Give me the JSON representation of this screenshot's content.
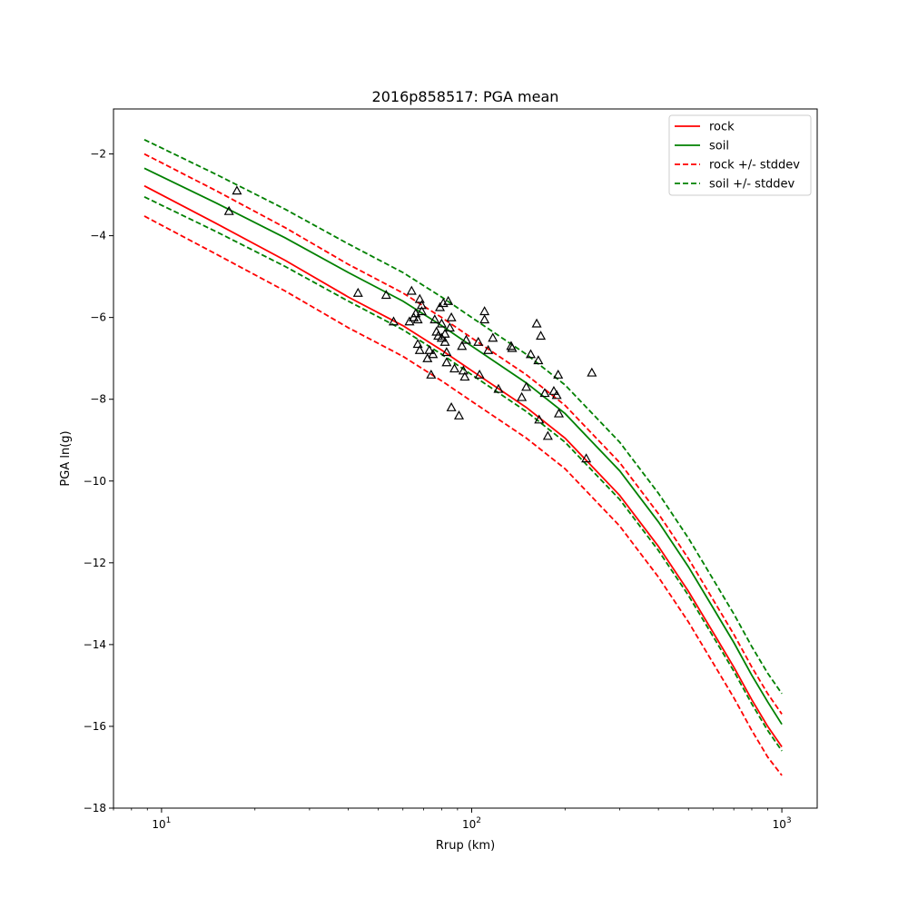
{
  "chart_data": {
    "type": "line",
    "title": "2016p858517: PGA mean",
    "xlabel": "Rrup (km)",
    "ylabel": "PGA ln(g)",
    "xscale": "log",
    "xlim": [
      7,
      1300
    ],
    "ylim": [
      -18,
      -0.9
    ],
    "x_ticks": [
      10,
      100,
      1000
    ],
    "x_tick_labels": [
      {
        "base": "10",
        "exp": "1"
      },
      {
        "base": "10",
        "exp": "2"
      },
      {
        "base": "10",
        "exp": "3"
      }
    ],
    "y_ticks": [
      -18,
      -16,
      -14,
      -12,
      -10,
      -8,
      -6,
      -4,
      -2
    ],
    "y_tick_labels": [
      "−18",
      "−16",
      "−14",
      "−12",
      "−10",
      "−8",
      "−6",
      "−4",
      "−2"
    ],
    "grid": false,
    "legend_position": "top-right",
    "series": [
      {
        "name": "rock",
        "color": "#ff0000",
        "style": "solid",
        "x": [
          8.8,
          15,
          25,
          40,
          60,
          80,
          100,
          150,
          200,
          300,
          400,
          500,
          600,
          700,
          800,
          900,
          1000
        ],
        "y": [
          -2.78,
          -3.7,
          -4.6,
          -5.5,
          -6.2,
          -6.8,
          -7.3,
          -8.2,
          -8.95,
          -10.35,
          -11.6,
          -12.7,
          -13.7,
          -14.55,
          -15.35,
          -16.0,
          -16.5
        ]
      },
      {
        "name": "soil",
        "color": "#008000",
        "style": "solid",
        "x": [
          8.8,
          15,
          25,
          40,
          60,
          80,
          100,
          150,
          200,
          300,
          400,
          500,
          600,
          700,
          800,
          900,
          1000
        ],
        "y": [
          -2.35,
          -3.2,
          -4.05,
          -4.9,
          -5.6,
          -6.2,
          -6.7,
          -7.6,
          -8.35,
          -9.75,
          -11.0,
          -12.1,
          -13.1,
          -13.95,
          -14.75,
          -15.4,
          -15.95
        ]
      },
      {
        "name": "rock +/- stddev",
        "color": "#ff0000",
        "style": "dashed",
        "x": [
          8.8,
          15,
          25,
          40,
          60,
          80,
          100,
          150,
          200,
          300,
          400,
          500,
          600,
          700,
          800,
          900,
          1000
        ],
        "y": [
          -2.0,
          -2.9,
          -3.8,
          -4.7,
          -5.4,
          -6.0,
          -6.5,
          -7.4,
          -8.15,
          -9.55,
          -10.8,
          -11.9,
          -12.9,
          -13.75,
          -14.55,
          -15.2,
          -15.7
        ]
      },
      {
        "name": "rock +/- stddev (lower)",
        "color": "#ff0000",
        "style": "dashed",
        "x": [
          8.8,
          15,
          25,
          40,
          60,
          80,
          100,
          150,
          200,
          300,
          400,
          500,
          600,
          700,
          800,
          900,
          1000
        ],
        "y": [
          -3.52,
          -4.45,
          -5.35,
          -6.25,
          -6.95,
          -7.55,
          -8.05,
          -8.95,
          -9.7,
          -11.1,
          -12.35,
          -13.45,
          -14.45,
          -15.3,
          -16.1,
          -16.75,
          -17.2
        ]
      },
      {
        "name": "soil +/- stddev",
        "color": "#008000",
        "style": "dashed",
        "x": [
          8.8,
          15,
          25,
          40,
          60,
          80,
          100,
          150,
          200,
          300,
          400,
          500,
          600,
          700,
          800,
          900,
          1000
        ],
        "y": [
          -1.65,
          -2.5,
          -3.35,
          -4.2,
          -4.9,
          -5.5,
          -6.0,
          -6.9,
          -7.65,
          -9.05,
          -10.3,
          -11.4,
          -12.4,
          -13.25,
          -14.05,
          -14.7,
          -15.2
        ]
      },
      {
        "name": "soil +/- stddev (lower)",
        "color": "#008000",
        "style": "dashed",
        "x": [
          8.8,
          15,
          25,
          40,
          60,
          80,
          100,
          150,
          200,
          300,
          400,
          500,
          600,
          700,
          800,
          900,
          1000
        ],
        "y": [
          -3.05,
          -3.9,
          -4.75,
          -5.6,
          -6.3,
          -6.9,
          -7.4,
          -8.3,
          -9.05,
          -10.45,
          -11.7,
          -12.8,
          -13.8,
          -14.65,
          -15.45,
          -16.1,
          -16.6
        ]
      }
    ],
    "observations": {
      "marker": "triangle",
      "color": "#000000",
      "points": [
        [
          16.5,
          -3.4
        ],
        [
          17.5,
          -2.9
        ],
        [
          43,
          -5.4
        ],
        [
          53,
          -5.45
        ],
        [
          56,
          -6.1
        ],
        [
          63,
          -6.1
        ],
        [
          64,
          -5.35
        ],
        [
          65,
          -6.0
        ],
        [
          66,
          -5.9
        ],
        [
          67,
          -6.05
        ],
        [
          67,
          -6.65
        ],
        [
          68,
          -6.8
        ],
        [
          68,
          -5.55
        ],
        [
          69,
          -5.7
        ],
        [
          69,
          -5.85
        ],
        [
          72,
          -7.0
        ],
        [
          73,
          -6.8
        ],
        [
          74,
          -7.4
        ],
        [
          75,
          -6.9
        ],
        [
          76,
          -6.05
        ],
        [
          77,
          -6.35
        ],
        [
          78,
          -6.45
        ],
        [
          79,
          -5.75
        ],
        [
          80,
          -6.15
        ],
        [
          80,
          -6.5
        ],
        [
          81,
          -5.65
        ],
        [
          82,
          -6.4
        ],
        [
          82,
          -6.6
        ],
        [
          83,
          -7.1
        ],
        [
          83,
          -6.85
        ],
        [
          84,
          -5.6
        ],
        [
          85,
          -6.25
        ],
        [
          86,
          -6.0
        ],
        [
          86,
          -8.2
        ],
        [
          88,
          -7.25
        ],
        [
          91,
          -8.4
        ],
        [
          93,
          -6.7
        ],
        [
          94,
          -7.3
        ],
        [
          95,
          -7.45
        ],
        [
          96,
          -6.55
        ],
        [
          105,
          -6.6
        ],
        [
          106,
          -7.4
        ],
        [
          110,
          -5.85
        ],
        [
          110,
          -6.05
        ],
        [
          113,
          -6.8
        ],
        [
          117,
          -6.5
        ],
        [
          122,
          -7.75
        ],
        [
          134,
          -6.7
        ],
        [
          135,
          -6.75
        ],
        [
          145,
          -7.95
        ],
        [
          150,
          -7.7
        ],
        [
          155,
          -6.9
        ],
        [
          162,
          -6.15
        ],
        [
          164,
          -7.05
        ],
        [
          165,
          -8.5
        ],
        [
          167,
          -6.45
        ],
        [
          172,
          -7.85
        ],
        [
          176,
          -8.9
        ],
        [
          184,
          -7.8
        ],
        [
          188,
          -7.9
        ],
        [
          190,
          -7.4
        ],
        [
          191,
          -8.35
        ],
        [
          234,
          -9.45
        ],
        [
          244,
          -7.35
        ]
      ]
    }
  },
  "legend": {
    "items": [
      {
        "label": "rock",
        "color": "#ff0000",
        "style": "solid"
      },
      {
        "label": "soil",
        "color": "#008000",
        "style": "solid"
      },
      {
        "label": "rock +/- stddev",
        "color": "#ff0000",
        "style": "dashed"
      },
      {
        "label": "soil +/- stddev",
        "color": "#008000",
        "style": "dashed"
      }
    ]
  }
}
